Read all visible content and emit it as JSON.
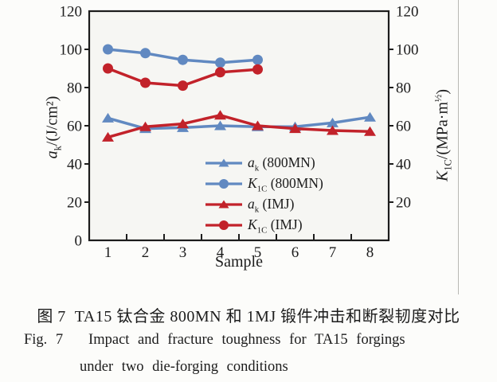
{
  "page": {
    "background": "#fcfcfa"
  },
  "rule": {
    "color": "#b8b8b4"
  },
  "caption": {
    "line1_zh": "图 7  TA15 钛合金 800MN 和 1MJ 锻件冲击和断裂韧度对比",
    "line2_en": "Fig. 7   Impact and fracture toughness for TA15 forgings",
    "line3_en": "under two die-forging conditions"
  },
  "chart_data": {
    "type": "line",
    "title": "",
    "xlabel": "Sample",
    "categories": [
      "1",
      "2",
      "3",
      "4",
      "5",
      "6",
      "7",
      "8"
    ],
    "left_axis": {
      "label_main": "a",
      "label_sub": "k",
      "label_rest": "/(J/cm²)",
      "min": 0,
      "max": 120,
      "tick_step": 20,
      "tick_labels": [
        0,
        20,
        40,
        60,
        80,
        100,
        120
      ]
    },
    "right_axis": {
      "label_main": "K",
      "label_sub": "1C",
      "label_rest": "/(MPa·m",
      "label_sup": "½",
      "label_end": ")",
      "min": 0,
      "max": 120,
      "tick_step": 20,
      "tick_labels": [
        20,
        40,
        60,
        80,
        100,
        120
      ]
    },
    "colors": {
      "blue": "#6189c1",
      "red": "#c2222a",
      "axis": "#1c1c1c",
      "plot_bg": "#f6f6f3"
    },
    "grid": false,
    "legend_position": "inside-bottom-center",
    "series": [
      {
        "key": "ak-800MN",
        "label_main": "a",
        "label_sub": "k",
        "label_rest": " (800MN)",
        "color_key": "blue",
        "marker": "triangle",
        "x": [
          1,
          2,
          3,
          4,
          5,
          6,
          7,
          8
        ],
        "values": [
          64,
          58.5,
          59,
          60,
          59.5,
          59.5,
          61.5,
          64.5
        ]
      },
      {
        "key": "K1C-800MN",
        "label_main": "K",
        "label_sub": "1C",
        "label_rest": " (800MN)",
        "color_key": "blue",
        "marker": "circle",
        "x": [
          1,
          2,
          3,
          4,
          5
        ],
        "values": [
          100,
          98,
          94.5,
          93,
          94.5
        ]
      },
      {
        "key": "ak-IMJ",
        "label_main": "a",
        "label_sub": "k",
        "label_rest": " (IMJ)",
        "color_key": "red",
        "marker": "triangle",
        "x": [
          1,
          2,
          3,
          4,
          5,
          6,
          7,
          8
        ],
        "values": [
          54,
          59.5,
          61,
          65.5,
          60,
          58.5,
          57.5,
          57
        ]
      },
      {
        "key": "K1C-IMJ",
        "label_main": "K",
        "label_sub": "1C",
        "label_rest": " (IMJ)",
        "color_key": "red",
        "marker": "circle",
        "x": [
          1,
          2,
          3,
          4,
          5
        ],
        "values": [
          90,
          82.5,
          81,
          88,
          89.5
        ]
      }
    ]
  }
}
